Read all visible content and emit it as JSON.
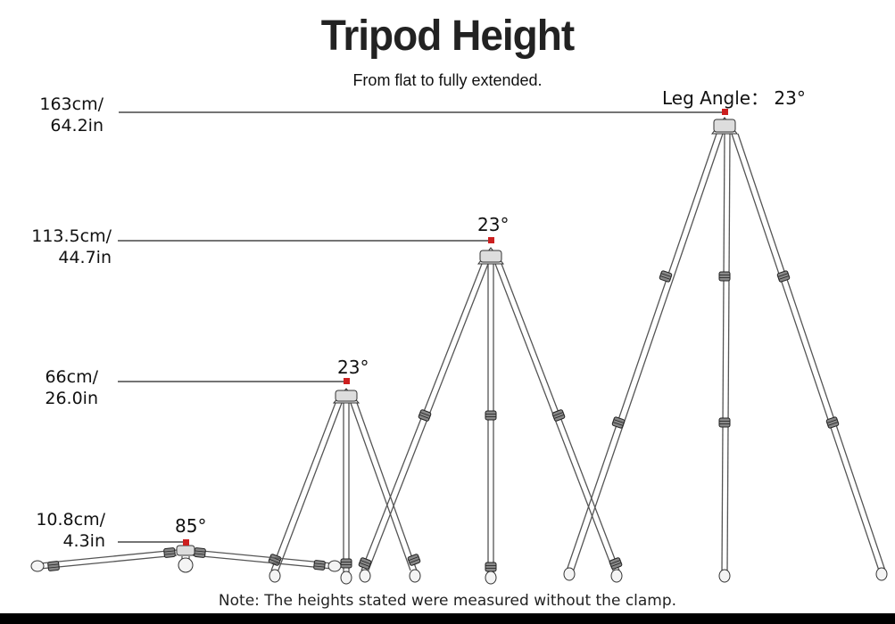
{
  "title": "Tripod Height",
  "subtitle": "From flat to fully extended.",
  "heights": [
    {
      "line1": "163cm/",
      "line2": "64.2in"
    },
    {
      "line1": "113.5cm/",
      "line2": "44.7in"
    },
    {
      "line1": "66cm/",
      "line2": "26.0in"
    },
    {
      "line1": "10.8cm/",
      "line2": "4.3in"
    }
  ],
  "angles": {
    "tall": "Leg Angle： 23°",
    "mid": "23°",
    "short": "23°",
    "flat": "85°"
  },
  "note": "Note: The heights stated were measured without the clamp.",
  "colors": {
    "accent": "#cc1f1f",
    "line": "#222222",
    "leg": "#555555"
  }
}
